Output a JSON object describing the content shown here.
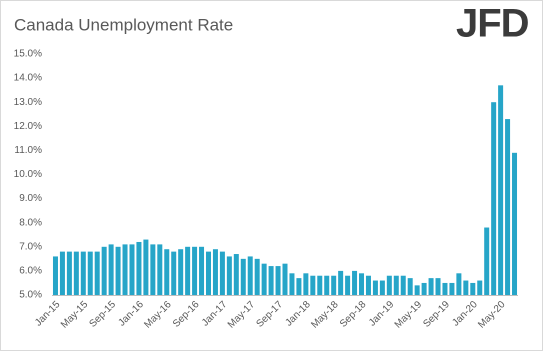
{
  "logo": "JFD",
  "chart_data": {
    "type": "bar",
    "title": "Canada Unemployment Rate",
    "categories": [
      "Jan-15",
      null,
      null,
      null,
      "May-15",
      null,
      null,
      null,
      "Sep-15",
      null,
      null,
      null,
      "Jan-16",
      null,
      null,
      null,
      "May-16",
      null,
      null,
      null,
      "Sep-16",
      null,
      null,
      null,
      "Jan-17",
      null,
      null,
      null,
      "May-17",
      null,
      null,
      null,
      "Sep-17",
      null,
      null,
      null,
      "Jan-18",
      null,
      null,
      null,
      "May-18",
      null,
      null,
      null,
      "Sep-18",
      null,
      null,
      null,
      "Jan-19",
      null,
      null,
      null,
      "May-19",
      null,
      null,
      null,
      "Sep-19",
      null,
      null,
      null,
      "Jan-20",
      null,
      null,
      null,
      "May-20",
      null,
      null
    ],
    "values": [
      6.6,
      6.8,
      6.8,
      6.8,
      6.8,
      6.8,
      6.8,
      7.0,
      7.1,
      7.0,
      7.1,
      7.1,
      7.2,
      7.3,
      7.1,
      7.1,
      6.9,
      6.8,
      6.9,
      7.0,
      7.0,
      7.0,
      6.8,
      6.9,
      6.8,
      6.6,
      6.7,
      6.5,
      6.6,
      6.5,
      6.3,
      6.2,
      6.2,
      6.3,
      5.9,
      5.7,
      5.9,
      5.8,
      5.8,
      5.8,
      5.8,
      6.0,
      5.8,
      6.0,
      5.9,
      5.8,
      5.6,
      5.6,
      5.8,
      5.8,
      5.8,
      5.7,
      5.4,
      5.5,
      5.7,
      5.7,
      5.5,
      5.5,
      5.9,
      5.6,
      5.5,
      5.6,
      7.8,
      13.0,
      13.7,
      12.3,
      10.9
    ],
    "color": "#26a5c8",
    "ylim": [
      5,
      15
    ],
    "yticks": [
      {
        "value": 5,
        "label": "5.0%"
      },
      {
        "value": 6,
        "label": "6.0%"
      },
      {
        "value": 7,
        "label": "7.0%"
      },
      {
        "value": 8,
        "label": "8.0%"
      },
      {
        "value": 9,
        "label": "9.0%"
      },
      {
        "value": 10,
        "label": "10.0%"
      },
      {
        "value": 11,
        "label": "11.0%"
      },
      {
        "value": 12,
        "label": "12.0%"
      },
      {
        "value": 13,
        "label": "13.0%"
      },
      {
        "value": 14,
        "label": "14.0%"
      },
      {
        "value": 15,
        "label": "15.0%"
      }
    ],
    "grid": false
  }
}
